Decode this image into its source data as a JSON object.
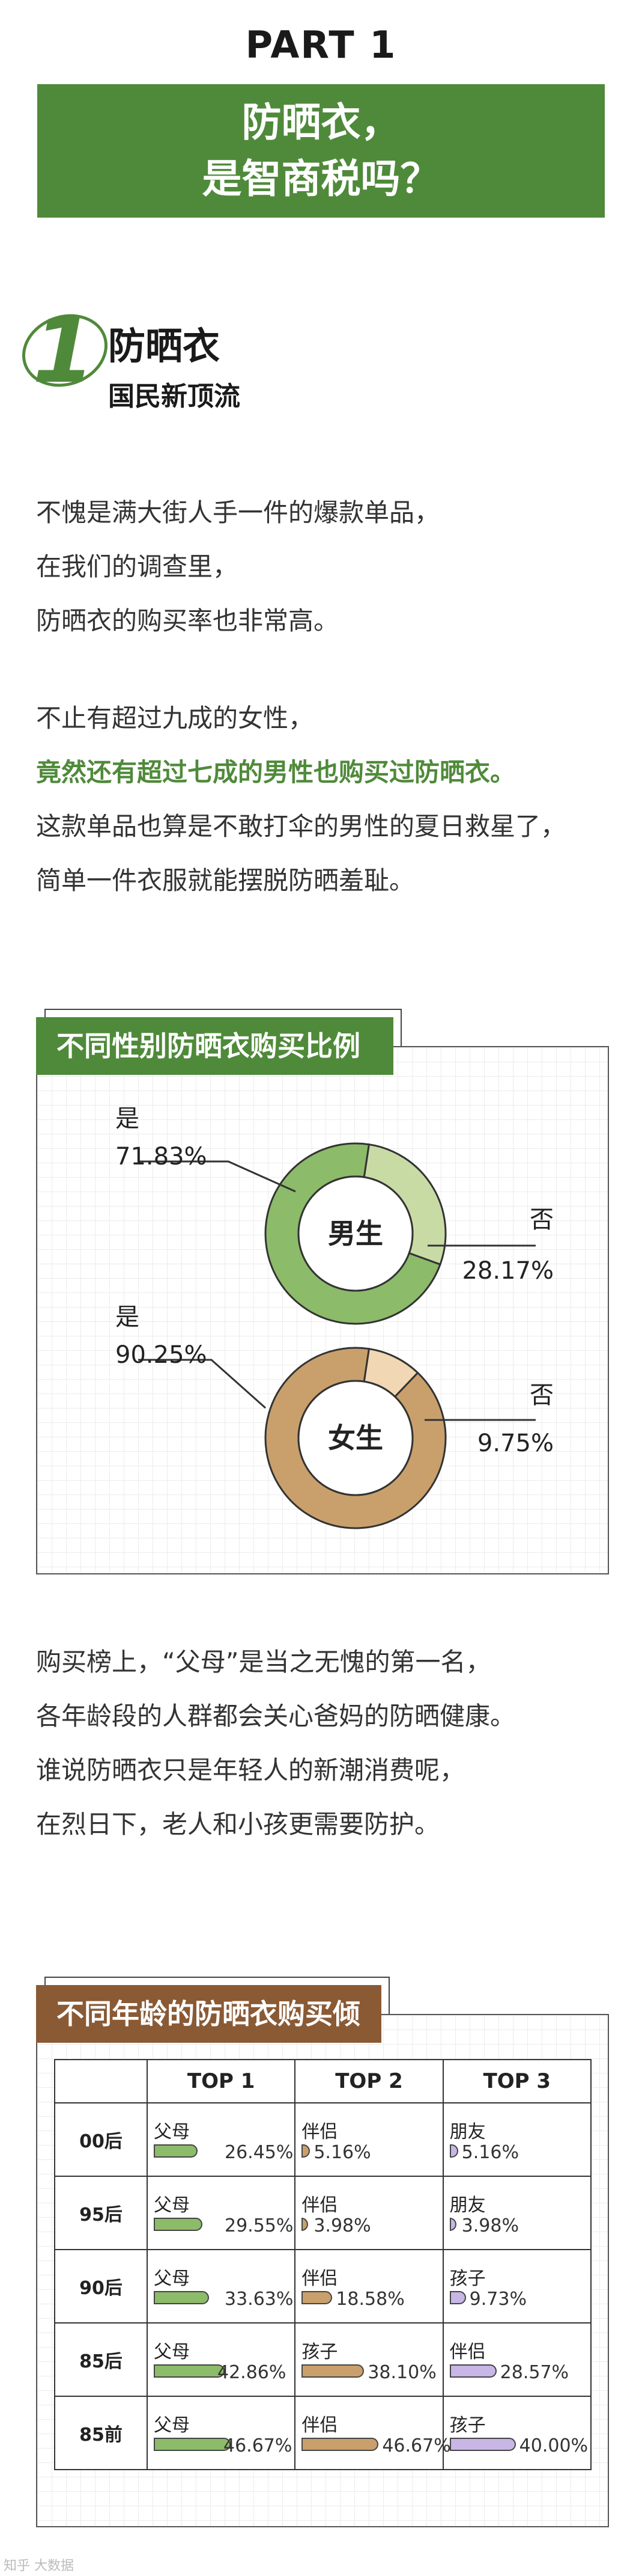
{
  "header": {
    "part": "PART 1",
    "title_line1": "防晒衣，",
    "title_line2": "是智商税吗？"
  },
  "section": {
    "number": "1",
    "title": "防晒衣",
    "subtitle": "国民新顶流"
  },
  "para1": [
    "不愧是满大街人手一件的爆款单品，",
    "在我们的调查里，",
    "防晒衣的购买率也非常高。"
  ],
  "para2": {
    "line1": "不止有超过九成的女性，",
    "highlight": "竟然还有超过七成的男性也购买过防晒衣。",
    "line3": "这款单品也算是不敢打伞的男性的夏日救星了，",
    "line4": "简单一件衣服就能摆脱防晒羞耻。"
  },
  "para3": [
    "购买榜上，“父母”是当之无愧的第一名，",
    "各年龄段的人群都会关心爸妈的防晒健康。",
    "谁说防晒衣只是年轻人的新潮消费呢，",
    "在烈日下，老人和小孩更需要防护。"
  ],
  "watermark": "知乎 大数据",
  "colors": {
    "green": "#4f8a3a",
    "brown": "#8a5a35",
    "male_yes": "#8cbb6a",
    "male_no": "#c9dba5",
    "female_yes": "#c9a06c",
    "female_no": "#f2d7b4",
    "bar_green": "#8cbb6a",
    "bar_tan": "#c9a06c",
    "bar_purple": "#c8b6e6"
  },
  "chart_data": [
    {
      "type": "pie",
      "title": "不同性别防晒衣购买比例",
      "series": [
        {
          "name": "男生",
          "labels": [
            "是",
            "否"
          ],
          "values": [
            71.83,
            28.17
          ],
          "value_labels": [
            "71.83%",
            "28.17%"
          ]
        },
        {
          "name": "女生",
          "labels": [
            "是",
            "否"
          ],
          "values": [
            90.25,
            9.75
          ],
          "value_labels": [
            "90.25%",
            "9.75%"
          ]
        }
      ]
    },
    {
      "type": "table",
      "title": "不同年龄的防晒衣购买倾向",
      "columns": [
        "",
        "TOP 1",
        "TOP 2",
        "TOP 3"
      ],
      "rows": [
        {
          "age": "00后",
          "entries": [
            {
              "label": "父母",
              "value": 26.45,
              "text": "26.45%"
            },
            {
              "label": "伴侣",
              "value": 5.16,
              "text": "5.16%"
            },
            {
              "label": "朋友",
              "value": 5.16,
              "text": "5.16%"
            }
          ]
        },
        {
          "age": "95后",
          "entries": [
            {
              "label": "父母",
              "value": 29.55,
              "text": "29.55%"
            },
            {
              "label": "伴侣",
              "value": 3.98,
              "text": "3.98%"
            },
            {
              "label": "朋友",
              "value": 3.98,
              "text": "3.98%"
            }
          ]
        },
        {
          "age": "90后",
          "entries": [
            {
              "label": "父母",
              "value": 33.63,
              "text": "33.63%"
            },
            {
              "label": "伴侣",
              "value": 18.58,
              "text": "18.58%"
            },
            {
              "label": "孩子",
              "value": 9.73,
              "text": "9.73%"
            }
          ]
        },
        {
          "age": "85后",
          "entries": [
            {
              "label": "父母",
              "value": 42.86,
              "text": "42.86%"
            },
            {
              "label": "孩子",
              "value": 38.1,
              "text": "38.10%"
            },
            {
              "label": "伴侣",
              "value": 28.57,
              "text": "28.57%"
            }
          ]
        },
        {
          "age": "85前",
          "entries": [
            {
              "label": "父母",
              "value": 46.67,
              "text": "46.67%"
            },
            {
              "label": "伴侣",
              "value": 46.67,
              "text": "46.67%"
            },
            {
              "label": "孩子",
              "value": 40.0,
              "text": "40.00%"
            }
          ]
        }
      ]
    }
  ]
}
